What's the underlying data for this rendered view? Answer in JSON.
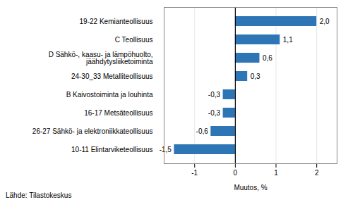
{
  "chart_data": {
    "type": "bar",
    "orientation": "horizontal",
    "categories": [
      "10-11 Elintarviketeollisuus",
      "26-27 Sähkö- ja elektroniikkateollisuus",
      "16-17 Metsäteollisuus",
      "B Kaivostoiminta ja louhinta",
      "24-30_33 Metalliteollisuus",
      "D Sähkö-, kaasu- ja lämpöhuolto,\njäähdytysliiketoiminta",
      "C Teollisuus",
      "19-22 Kemianteollisuus"
    ],
    "values": [
      -1.5,
      -0.6,
      -0.3,
      -0.3,
      0.3,
      0.6,
      1.1,
      2.0
    ],
    "value_labels": [
      "-1,5",
      "-0,6",
      "-0,3",
      "-0,3",
      "0,3",
      "0,6",
      "1,1",
      "2,0"
    ],
    "data_labels": true,
    "color": "#2E75B6",
    "xlabel": "Muutos, %",
    "xlim": [
      -1.75,
      2.5
    ],
    "xticks": [
      -1,
      0,
      1,
      2
    ],
    "grid": true,
    "caption": "Lähde: Tilastokeskus"
  }
}
